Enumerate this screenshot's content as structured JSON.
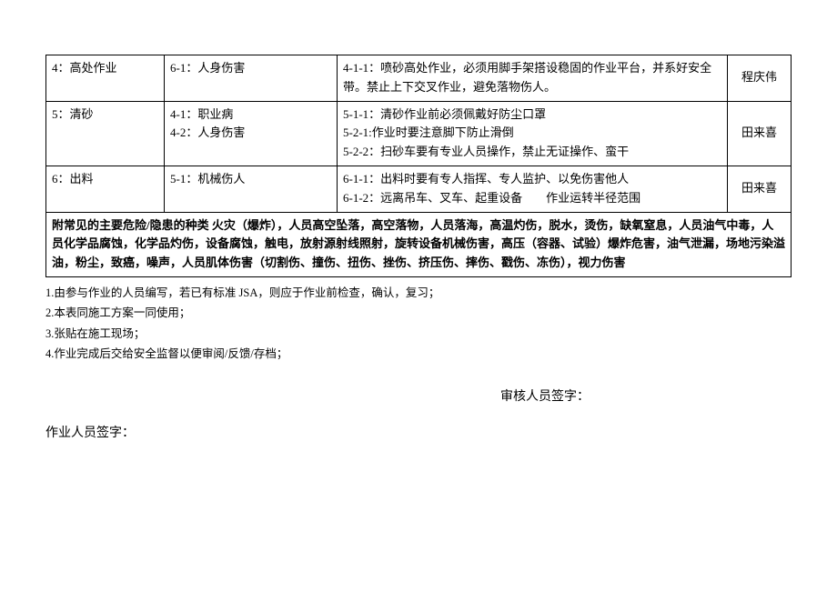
{
  "table": {
    "rows": [
      {
        "step": "4：高处作业",
        "risk": "6-1：人身伤害",
        "measure": "4-1-1：喷砂高处作业，必须用脚手架搭设稳固的作业平台，并系好安全带。禁止上下交叉作业，避免落物伤人。",
        "person": "程庆伟"
      },
      {
        "step": "5：清砂",
        "risk": "4-1：职业病\n4-2：人身伤害",
        "measure": "5-1-1：清砂作业前必须佩戴好防尘口罩\n5-2-1:作业时要注意脚下防止滑倒\n5-2-2：扫砂车要有专业人员操作，禁止无证操作、蛮干",
        "person": "田来喜"
      },
      {
        "step": "6：出料",
        "risk": "5-1：机械伤人",
        "measure": "6-1-1：出料时要有专人指挥、专人监护、以免伤害他人\n6-1-2：远离吊车、叉车、起重设备　　作业运转半径范围",
        "person": "田来喜"
      }
    ],
    "hazard_note": "附常见的主要危险/隐患的种类 火灾（爆炸），人员高空坠落，高空落物，人员落海，高温灼伤，脱水，烫伤，缺氧窒息，人员油气中毒，人员化学品腐蚀，化学品灼伤，设备腐蚀，触电，放射源射线照射，旋转设备机械伤害，高压（容器、试验）爆炸危害，油气泄漏，场地污染溢油，粉尘，致癌，噪声，人员肌体伤害（切割伤、撞伤、扭伤、挫伤、挤压伤、摔伤、戳伤、冻伤），视力伤害"
  },
  "notes": [
    "1.由参与作业的人员编写，若已有标准 JSA，则应于作业前检查，确认，复习；",
    "2.本表同施工方案一同使用；",
    "3.张贴在施工现场；",
    "4.作业完成后交给安全监督以便审阅/反馈/存档；"
  ],
  "sign": {
    "reviewer": "审核人员签字：",
    "worker": "作业人员签字："
  }
}
